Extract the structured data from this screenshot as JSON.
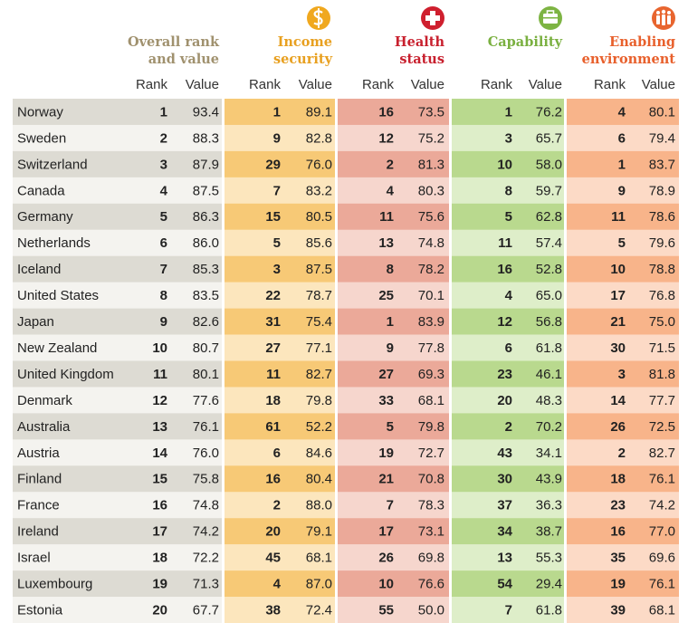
{
  "groups": [
    {
      "title": [
        "Overall rank",
        "and value"
      ],
      "rank_label": "Rank",
      "value_label": "Value"
    },
    {
      "title": [
        "Income",
        "security"
      ],
      "rank_label": "Rank",
      "value_label": "Value"
    },
    {
      "title": [
        "Health",
        "status"
      ],
      "rank_label": "Rank",
      "value_label": "Value"
    },
    {
      "title": [
        "Capability"
      ],
      "rank_label": "Rank",
      "value_label": "Value"
    },
    {
      "title": [
        "Enabling",
        "environment"
      ],
      "rank_label": "Rank",
      "value_label": "Value"
    }
  ],
  "rows": [
    [
      "Norway",
      1,
      "93.4",
      1,
      "89.1",
      16,
      "73.5",
      1,
      "76.2",
      4,
      "80.1"
    ],
    [
      "Sweden",
      2,
      "88.3",
      9,
      "82.8",
      12,
      "75.2",
      3,
      "65.7",
      6,
      "79.4"
    ],
    [
      "Switzerland",
      3,
      "87.9",
      29,
      "76.0",
      2,
      "81.3",
      10,
      "58.0",
      1,
      "83.7"
    ],
    [
      "Canada",
      4,
      "87.5",
      7,
      "83.2",
      4,
      "80.3",
      8,
      "59.7",
      9,
      "78.9"
    ],
    [
      "Germany",
      5,
      "86.3",
      15,
      "80.5",
      11,
      "75.6",
      5,
      "62.8",
      11,
      "78.6"
    ],
    [
      "Netherlands",
      6,
      "86.0",
      5,
      "85.6",
      13,
      "74.8",
      11,
      "57.4",
      5,
      "79.6"
    ],
    [
      "Iceland",
      7,
      "85.3",
      3,
      "87.5",
      8,
      "78.2",
      16,
      "52.8",
      10,
      "78.8"
    ],
    [
      "United States",
      8,
      "83.5",
      22,
      "78.7",
      25,
      "70.1",
      4,
      "65.0",
      17,
      "76.8"
    ],
    [
      "Japan",
      9,
      "82.6",
      31,
      "75.4",
      1,
      "83.9",
      12,
      "56.8",
      21,
      "75.0"
    ],
    [
      "New Zealand",
      10,
      "80.7",
      27,
      "77.1",
      9,
      "77.8",
      6,
      "61.8",
      30,
      "71.5"
    ],
    [
      "United Kingdom",
      11,
      "80.1",
      11,
      "82.7",
      27,
      "69.3",
      23,
      "46.1",
      3,
      "81.8"
    ],
    [
      "Denmark",
      12,
      "77.6",
      18,
      "79.8",
      33,
      "68.1",
      20,
      "48.3",
      14,
      "77.7"
    ],
    [
      "Australia",
      13,
      "76.1",
      61,
      "52.2",
      5,
      "79.8",
      2,
      "70.2",
      26,
      "72.5"
    ],
    [
      "Austria",
      14,
      "76.0",
      6,
      "84.6",
      19,
      "72.7",
      43,
      "34.1",
      2,
      "82.7"
    ],
    [
      "Finland",
      15,
      "75.8",
      16,
      "80.4",
      21,
      "70.8",
      30,
      "43.9",
      18,
      "76.1"
    ],
    [
      "France",
      16,
      "74.8",
      2,
      "88.0",
      7,
      "78.3",
      37,
      "36.3",
      23,
      "74.2"
    ],
    [
      "Ireland",
      17,
      "74.2",
      20,
      "79.1",
      17,
      "73.1",
      34,
      "38.7",
      16,
      "77.0"
    ],
    [
      "Israel",
      18,
      "72.2",
      45,
      "68.1",
      26,
      "69.8",
      13,
      "55.3",
      35,
      "69.6"
    ],
    [
      "Luxembourg",
      19,
      "71.3",
      4,
      "87.0",
      10,
      "76.6",
      54,
      "29.4",
      19,
      "76.1"
    ],
    [
      "Estonia",
      20,
      "67.7",
      38,
      "72.4",
      55,
      "50.0",
      7,
      "61.8",
      39,
      "68.1"
    ]
  ]
}
